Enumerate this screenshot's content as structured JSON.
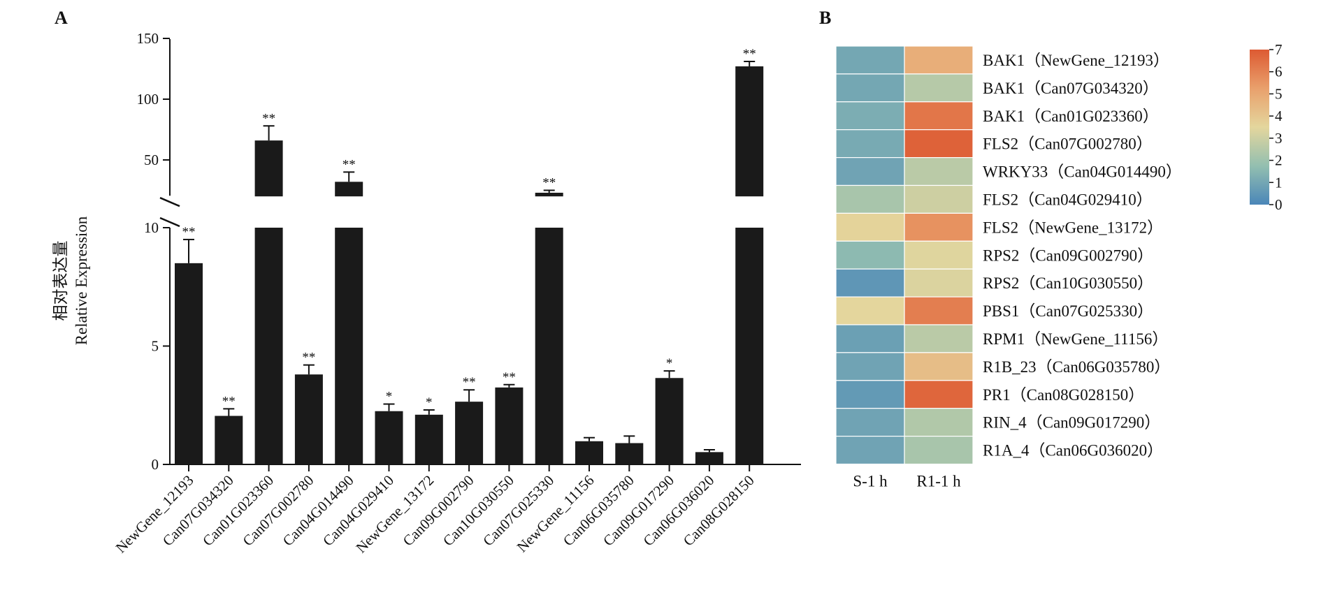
{
  "chart_data": [
    {
      "type": "bar",
      "panel_label": "A",
      "ylabel_cn": "相对表达量",
      "ylabel_en": "Relative Expression",
      "y_axis": {
        "broken": true,
        "lower_range": [
          0,
          10
        ],
        "upper_range": [
          20,
          150
        ],
        "lower_ticks": [
          "0",
          "5",
          "10"
        ],
        "upper_ticks": [
          "50",
          "100",
          "150"
        ]
      },
      "categories": [
        "NewGene_12193",
        "Can07G034320",
        "Can01G023360",
        "Can07G002780",
        "Can04G014490",
        "Can04G029410",
        "NewGene_13172",
        "Can09G002790",
        "Can10G030550",
        "Can07G025330",
        "NewGene_11156",
        "Can06G035780",
        "Can09G017290",
        "Can06G036020",
        "Can08G028150"
      ],
      "values": [
        8.5,
        2.05,
        66,
        3.8,
        32,
        2.25,
        2.1,
        2.65,
        3.25,
        23,
        0.98,
        0.9,
        3.65,
        0.52,
        127
      ],
      "errors": [
        1.0,
        0.3,
        12,
        0.4,
        8,
        0.3,
        0.2,
        0.5,
        0.12,
        2,
        0.15,
        0.3,
        0.3,
        0.1,
        4
      ],
      "significance": [
        "**",
        "**",
        "**",
        "**",
        "**",
        "*",
        "*",
        "**",
        "**",
        "**",
        "",
        "",
        "*",
        "",
        "**"
      ],
      "bar_color": "#1a1a1a"
    },
    {
      "type": "heatmap",
      "panel_label": "B",
      "columns": [
        "S-1 h",
        "R1-1 h"
      ],
      "rows": [
        "BAK1（NewGene_12193）",
        "BAK1（Can07G034320）",
        "BAK1（Can01G023360）",
        "FLS2（Can07G002780）",
        "WRKY33（Can04G014490）",
        "FLS2（Can04G029410）",
        "FLS2（NewGene_13172）",
        "RPS2（Can09G002790）",
        "RPS2（Can10G030550）",
        "PBS1（Can07G025330）",
        "RPM1（NewGene_11156）",
        "R1B_23（Can06G035780）",
        "PR1（Can08G028150）",
        "RIN_4（Can09G017290）",
        "R1A_4（Can06G036020）"
      ],
      "values": [
        [
          1.0,
          4.8
        ],
        [
          1.0,
          2.5
        ],
        [
          1.2,
          6.3
        ],
        [
          1.1,
          6.8
        ],
        [
          0.9,
          2.6
        ],
        [
          2.2,
          3.0
        ],
        [
          3.6,
          5.6
        ],
        [
          1.6,
          3.4
        ],
        [
          0.5,
          3.3
        ],
        [
          3.5,
          6.1
        ],
        [
          0.8,
          2.6
        ],
        [
          0.9,
          4.3
        ],
        [
          0.6,
          6.7
        ],
        [
          0.9,
          2.4
        ],
        [
          0.9,
          2.2
        ]
      ],
      "colorbar": {
        "min": 0,
        "max": 7,
        "ticks": [
          "0",
          "1",
          "2",
          "3",
          "4",
          "5",
          "6",
          "7"
        ]
      },
      "colorscale": [
        "#4a86b8",
        "#93bfb0",
        "#e4d69d",
        "#e9a06c",
        "#dd5a32"
      ]
    }
  ]
}
